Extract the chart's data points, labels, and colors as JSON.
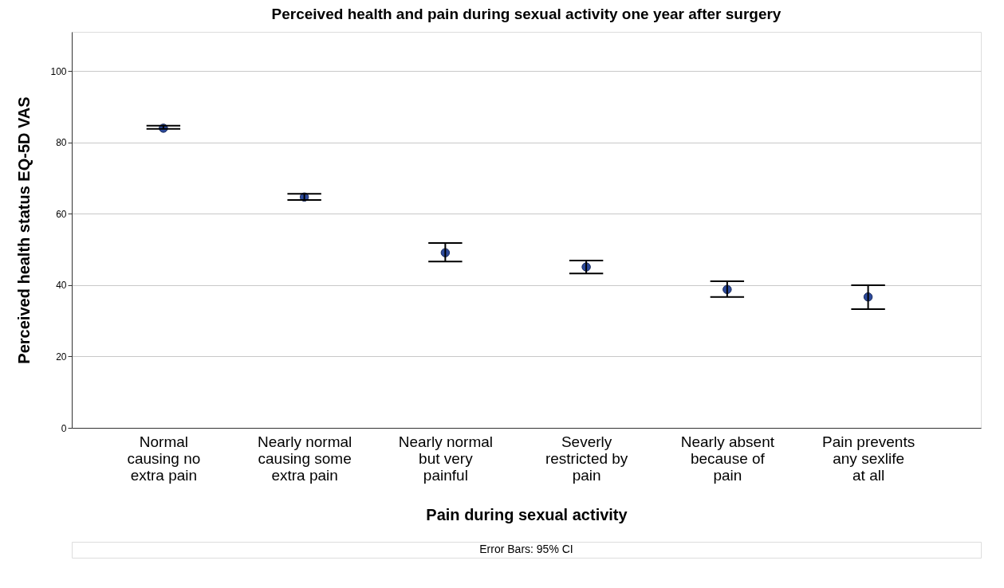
{
  "chart_data": {
    "type": "scatter",
    "title": "Perceived health and pain during sexual activity one year after surgery",
    "xlabel": "Pain during sexual activity",
    "ylabel": "Perceived health status EQ-5D VAS",
    "categories": [
      "Normal causing no extra pain",
      "Nearly normal causing some extra pain",
      "Nearly normal but very painful",
      "Severly restricted by pain",
      "Nearly absent because of pain",
      "Pain prevents any sexlife at all"
    ],
    "series": [
      {
        "color": "#2c4a9c",
        "values": [
          84.0,
          64.7,
          49.1,
          45.1,
          38.8,
          36.7
        ],
        "errors": [
          [
            83.8,
            84.7
          ],
          [
            63.9,
            65.6
          ],
          [
            46.6,
            51.8
          ],
          [
            43.3,
            46.9
          ],
          [
            36.7,
            41.1
          ],
          [
            33.3,
            40.0
          ]
        ]
      }
    ],
    "ylim": [
      0,
      111
    ],
    "yticks": [
      0,
      20,
      40,
      60,
      80,
      100
    ],
    "grid": "y",
    "marker": "circle",
    "legend": false,
    "annotations": [
      "Error Bars: 95% CI"
    ]
  }
}
